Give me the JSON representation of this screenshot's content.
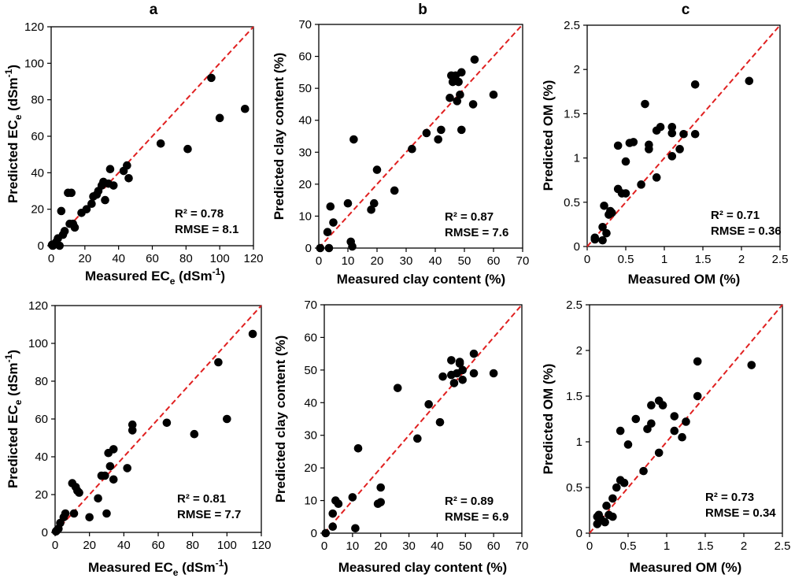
{
  "panel_labels": [
    "a",
    "b",
    "c"
  ],
  "chart_data": [
    {
      "type": "scatter",
      "id": "ec-top",
      "xlabel": "Measured EC",
      "ylabel": "Predicted EC",
      "label_sub": "e",
      "label_unit_open": " (dSm",
      "label_sup": "-1",
      "label_unit_close": ")",
      "xlim": [
        0,
        120
      ],
      "ylim": [
        0,
        120
      ],
      "xticks": [
        0,
        20,
        40,
        60,
        80,
        100,
        120
      ],
      "yticks": [
        0,
        20,
        40,
        60,
        80,
        100,
        120
      ],
      "stats": [
        "R² = 0.78",
        "RMSE = 8.1"
      ],
      "one_to_one": true,
      "points": [
        [
          0.5,
          0.5
        ],
        [
          1,
          0
        ],
        [
          2,
          1
        ],
        [
          3,
          2
        ],
        [
          4,
          4
        ],
        [
          5,
          0
        ],
        [
          6,
          19
        ],
        [
          7,
          6
        ],
        [
          8,
          8
        ],
        [
          10,
          29
        ],
        [
          11,
          12
        ],
        [
          12,
          29
        ],
        [
          13,
          12
        ],
        [
          14,
          10
        ],
        [
          18,
          18
        ],
        [
          21,
          20
        ],
        [
          24,
          23
        ],
        [
          25,
          27
        ],
        [
          27,
          28
        ],
        [
          28,
          30
        ],
        [
          30,
          33
        ],
        [
          31,
          35
        ],
        [
          32,
          25
        ],
        [
          34,
          34
        ],
        [
          35,
          42
        ],
        [
          37,
          33
        ],
        [
          43,
          41
        ],
        [
          45,
          44
        ],
        [
          46,
          37
        ],
        [
          65,
          56
        ],
        [
          81,
          53
        ],
        [
          95,
          92
        ],
        [
          100,
          70
        ],
        [
          115,
          75
        ]
      ]
    },
    {
      "type": "scatter",
      "id": "clay-top",
      "xlabel": "Measured clay content (%)",
      "ylabel": "Predicted clay content (%)",
      "xlim": [
        0,
        70
      ],
      "ylim": [
        0,
        70
      ],
      "xticks": [
        0,
        10,
        20,
        30,
        40,
        50,
        60,
        70
      ],
      "yticks": [
        0,
        10,
        20,
        30,
        40,
        50,
        60,
        70
      ],
      "stats": [
        "R² = 0.87",
        "RMSE = 7.6"
      ],
      "one_to_one": true,
      "points": [
        [
          0.5,
          0
        ],
        [
          3,
          5
        ],
        [
          3.5,
          0
        ],
        [
          4,
          13
        ],
        [
          5,
          8
        ],
        [
          10,
          14
        ],
        [
          11,
          2
        ],
        [
          11.5,
          0.5
        ],
        [
          12,
          34
        ],
        [
          18,
          12
        ],
        [
          19,
          14
        ],
        [
          20,
          24.5
        ],
        [
          26,
          18
        ],
        [
          32,
          31
        ],
        [
          37,
          36
        ],
        [
          41,
          34
        ],
        [
          42,
          37
        ],
        [
          45,
          47
        ],
        [
          45.5,
          54
        ],
        [
          46,
          52
        ],
        [
          47,
          54
        ],
        [
          47.5,
          46
        ],
        [
          48,
          52
        ],
        [
          48.5,
          48
        ],
        [
          49,
          55
        ],
        [
          49,
          37
        ],
        [
          53,
          45
        ],
        [
          53.5,
          59
        ],
        [
          60,
          48
        ]
      ]
    },
    {
      "type": "scatter",
      "id": "om-top",
      "xlabel": "Measured OM  (%)",
      "ylabel": "Predicted OM  (%)",
      "xlim": [
        0,
        2.5
      ],
      "ylim": [
        0,
        2.5
      ],
      "xticks": [
        "0",
        "0.5",
        "1",
        "1.5",
        "2",
        "2.5"
      ],
      "yticks": [
        "0",
        "0.5",
        "1",
        "1.5",
        "2",
        "2.5"
      ],
      "stats": [
        "R² = 0.71",
        "RMSE = 0.36"
      ],
      "one_to_one": true,
      "points": [
        [
          0.1,
          0.08
        ],
        [
          0.1,
          0.1
        ],
        [
          0.2,
          0.07
        ],
        [
          0.2,
          0.22
        ],
        [
          0.22,
          0.46
        ],
        [
          0.25,
          0.15
        ],
        [
          0.28,
          0.36
        ],
        [
          0.3,
          0.4
        ],
        [
          0.32,
          0.38
        ],
        [
          0.4,
          0.65
        ],
        [
          0.4,
          1.14
        ],
        [
          0.45,
          0.6
        ],
        [
          0.5,
          0.6
        ],
        [
          0.5,
          0.96
        ],
        [
          0.55,
          1.17
        ],
        [
          0.6,
          1.18
        ],
        [
          0.7,
          0.7
        ],
        [
          0.75,
          1.61
        ],
        [
          0.8,
          1.1
        ],
        [
          0.8,
          1.15
        ],
        [
          0.9,
          0.78
        ],
        [
          0.9,
          1.31
        ],
        [
          0.95,
          1.35
        ],
        [
          1.1,
          1.02
        ],
        [
          1.1,
          1.28
        ],
        [
          1.1,
          1.35
        ],
        [
          1.2,
          1.1
        ],
        [
          1.25,
          1.27
        ],
        [
          1.4,
          1.27
        ],
        [
          1.4,
          1.83
        ],
        [
          2.1,
          1.87
        ]
      ]
    },
    {
      "type": "scatter",
      "id": "ec-bottom",
      "xlabel": "Measured EC",
      "ylabel": "Predicted EC",
      "label_sub": "e",
      "label_unit_open": " (dSm",
      "label_sup": "-1",
      "label_unit_close": ")",
      "xlim": [
        0,
        120
      ],
      "ylim": [
        0,
        120
      ],
      "xticks": [
        0,
        20,
        40,
        60,
        80,
        100,
        120
      ],
      "yticks": [
        0,
        20,
        40,
        60,
        80,
        100,
        120
      ],
      "stats": [
        "R² = 0.81",
        "RMSE = 7.7"
      ],
      "one_to_one": true,
      "points": [
        [
          0.5,
          0.5
        ],
        [
          1,
          1
        ],
        [
          2,
          2
        ],
        [
          3,
          5
        ],
        [
          5,
          8
        ],
        [
          6,
          10
        ],
        [
          10,
          26
        ],
        [
          11,
          10
        ],
        [
          12,
          24
        ],
        [
          13,
          22
        ],
        [
          14,
          21
        ],
        [
          20,
          8
        ],
        [
          25,
          18
        ],
        [
          27,
          30
        ],
        [
          29,
          30
        ],
        [
          30,
          10
        ],
        [
          31,
          42
        ],
        [
          32,
          35
        ],
        [
          34,
          44
        ],
        [
          34,
          28
        ],
        [
          42,
          34
        ],
        [
          45,
          57
        ],
        [
          45,
          54
        ],
        [
          65,
          58
        ],
        [
          81,
          52
        ],
        [
          95,
          90
        ],
        [
          100,
          60
        ],
        [
          115,
          105
        ]
      ]
    },
    {
      "type": "scatter",
      "id": "clay-bottom",
      "xlabel": "Measured clay content (%)",
      "ylabel": "Predicted clay content (%)",
      "xlim": [
        0,
        70
      ],
      "ylim": [
        0,
        70
      ],
      "xticks": [
        0,
        10,
        20,
        30,
        40,
        50,
        60,
        70
      ],
      "yticks": [
        0,
        10,
        20,
        30,
        40,
        50,
        60,
        70
      ],
      "stats": [
        "R² = 0.89",
        "RMSE = 6.9"
      ],
      "one_to_one": true,
      "points": [
        [
          0.5,
          0
        ],
        [
          3,
          2
        ],
        [
          3,
          6
        ],
        [
          4,
          10
        ],
        [
          5,
          9
        ],
        [
          10,
          11
        ],
        [
          11,
          1.5
        ],
        [
          12,
          26
        ],
        [
          19,
          9
        ],
        [
          20,
          9.5
        ],
        [
          20,
          14
        ],
        [
          26,
          44.5
        ],
        [
          33,
          29
        ],
        [
          37,
          39.5
        ],
        [
          41,
          34
        ],
        [
          42,
          48
        ],
        [
          45,
          48.5
        ],
        [
          45,
          53
        ],
        [
          46,
          46
        ],
        [
          47,
          49
        ],
        [
          48,
          52
        ],
        [
          48,
          52.5
        ],
        [
          49,
          47
        ],
        [
          49,
          50
        ],
        [
          53,
          49
        ],
        [
          53,
          55
        ],
        [
          60,
          49
        ]
      ]
    },
    {
      "type": "scatter",
      "id": "om-bottom",
      "xlabel": "Measured OM  (%)",
      "ylabel": "Predicted OM  (%)",
      "xlim": [
        0,
        2.5
      ],
      "ylim": [
        0,
        2.5
      ],
      "xticks": [
        "0",
        "0.5",
        "1",
        "1.5",
        "2",
        "2.5"
      ],
      "yticks": [
        "0",
        "0.5",
        "1",
        "1.5",
        "2",
        "2.5"
      ],
      "stats": [
        "R² = 0.73",
        "RMSE = 0.34"
      ],
      "one_to_one": true,
      "points": [
        [
          0.1,
          0.1
        ],
        [
          0.1,
          0.18
        ],
        [
          0.12,
          0.2
        ],
        [
          0.15,
          0.15
        ],
        [
          0.2,
          0.12
        ],
        [
          0.22,
          0.3
        ],
        [
          0.25,
          0.2
        ],
        [
          0.3,
          0.38
        ],
        [
          0.3,
          0.18
        ],
        [
          0.35,
          0.5
        ],
        [
          0.4,
          1.12
        ],
        [
          0.4,
          0.58
        ],
        [
          0.45,
          0.55
        ],
        [
          0.5,
          0.97
        ],
        [
          0.6,
          1.25
        ],
        [
          0.7,
          0.68
        ],
        [
          0.75,
          1.14
        ],
        [
          0.8,
          1.2
        ],
        [
          0.8,
          1.4
        ],
        [
          0.9,
          0.88
        ],
        [
          0.9,
          1.45
        ],
        [
          0.95,
          1.4
        ],
        [
          1.1,
          1.12
        ],
        [
          1.1,
          1.28
        ],
        [
          1.2,
          1.05
        ],
        [
          1.25,
          1.22
        ],
        [
          1.4,
          1.5
        ],
        [
          1.4,
          1.88
        ],
        [
          2.1,
          1.84
        ]
      ]
    }
  ]
}
